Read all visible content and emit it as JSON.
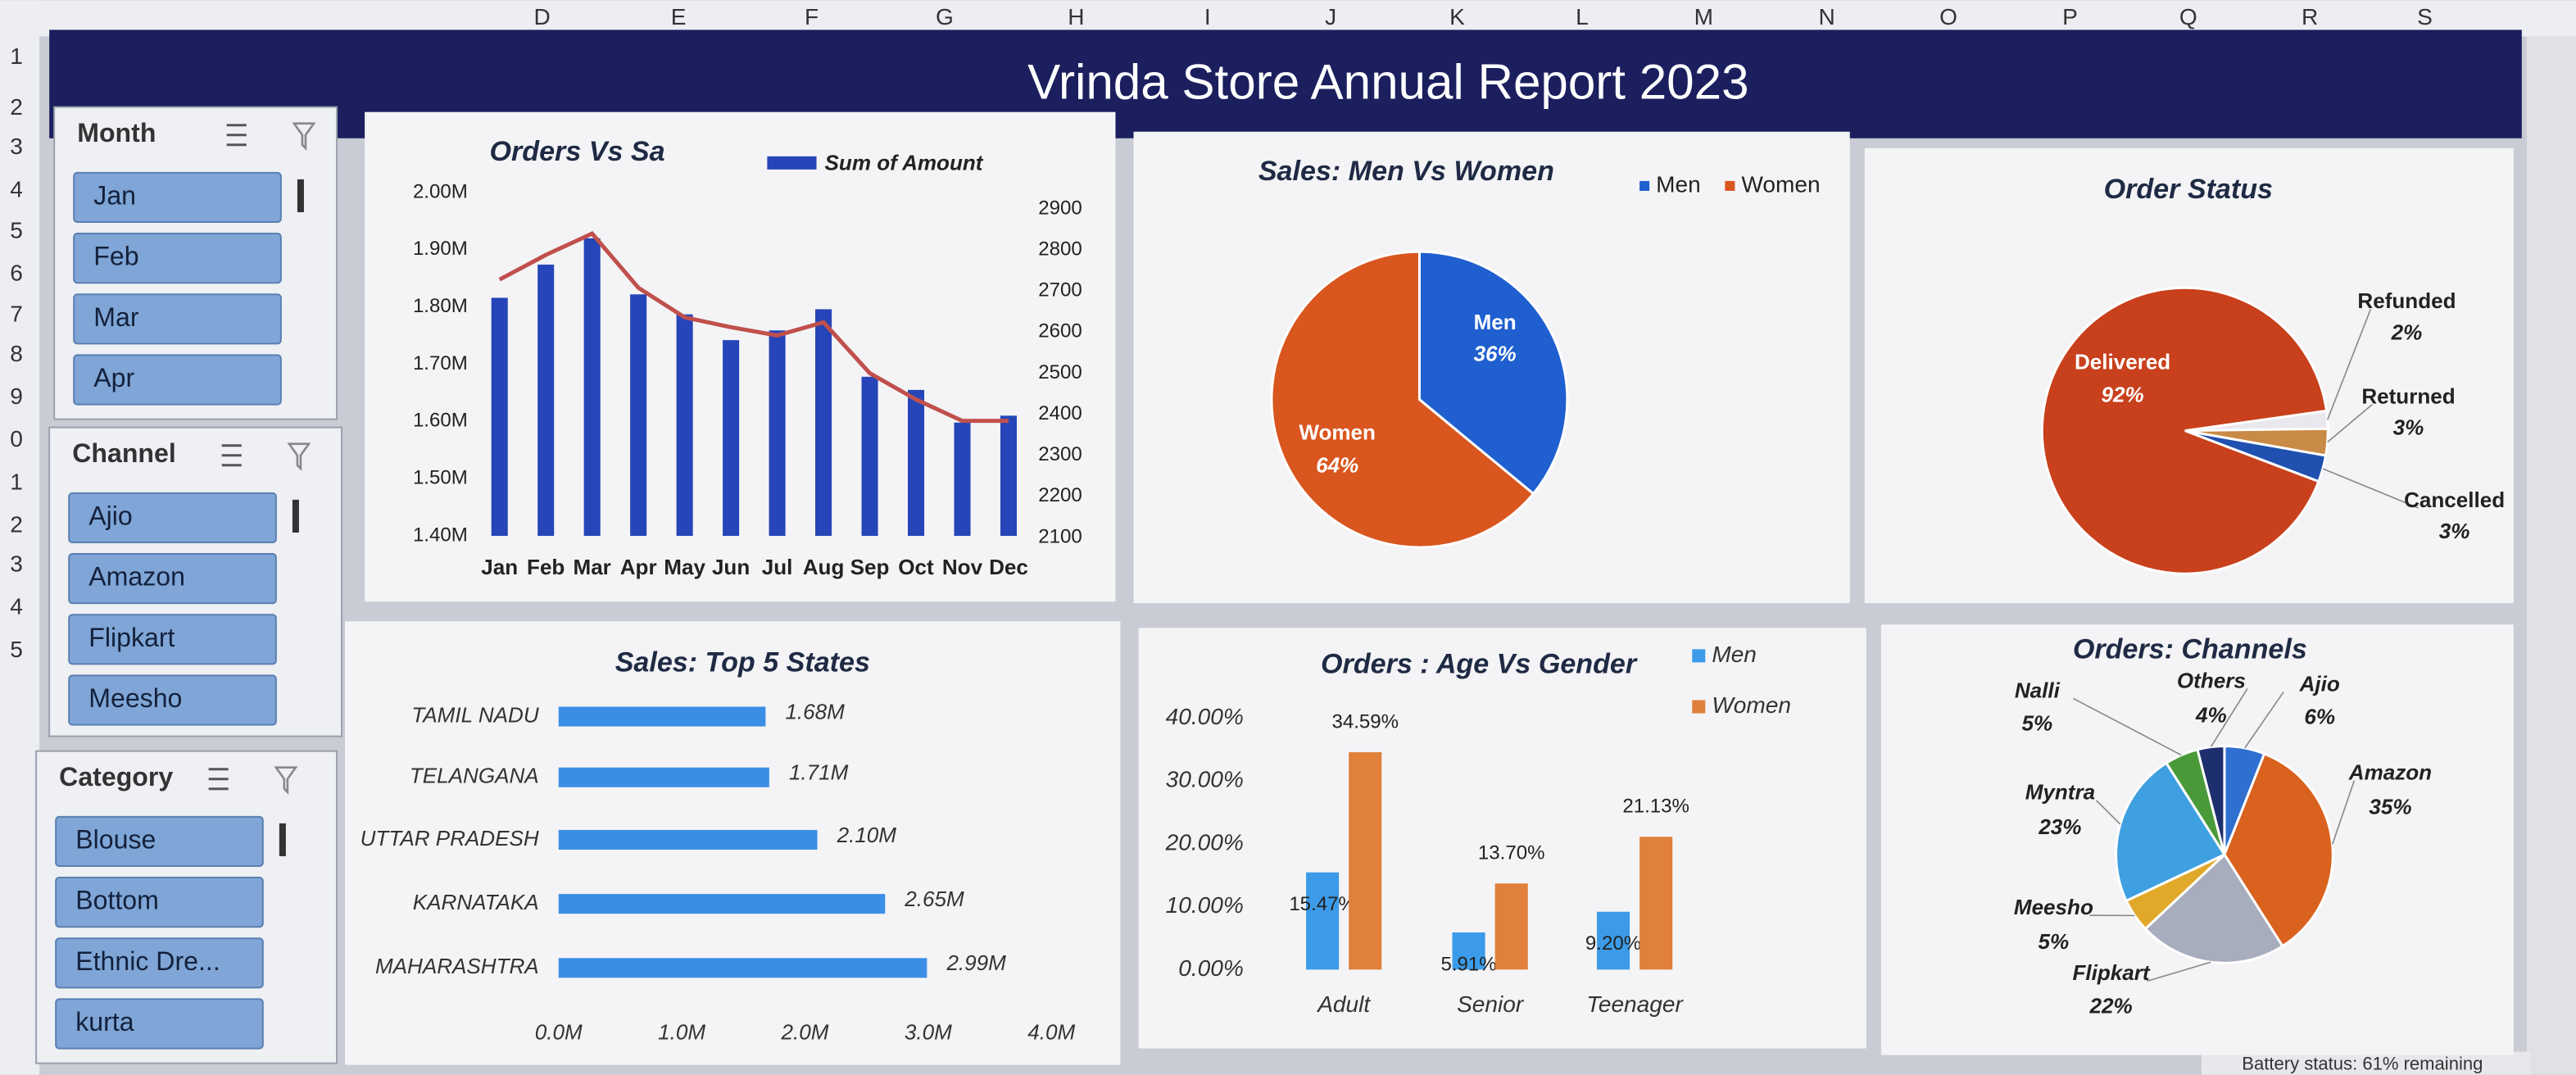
{
  "title": "Vrinda Store Annual Report 2023",
  "column_headers": [
    "D",
    "E",
    "F",
    "G",
    "H",
    "I",
    "J",
    "K",
    "L",
    "M",
    "N",
    "O",
    "P",
    "Q",
    "R",
    "S"
  ],
  "row_headers": [
    "1",
    "2",
    "3",
    "4",
    "5",
    "6",
    "7",
    "8",
    "9",
    "0",
    "1",
    "2",
    "3",
    "4",
    "5"
  ],
  "slicers": [
    {
      "title": "Month",
      "items": [
        "Jan",
        "Feb",
        "Mar",
        "Apr"
      ]
    },
    {
      "title": "Channel",
      "items": [
        "Ajio",
        "Amazon",
        "Flipkart",
        "Meesho"
      ]
    },
    {
      "title": "Category",
      "items": [
        "Blouse",
        "Bottom",
        "Ethnic Dre...",
        "kurta"
      ]
    }
  ],
  "status_bar": "Battery status: 61% remaining",
  "chart_data": [
    {
      "type": "combo",
      "title": "Orders Vs Sa",
      "categories": [
        "Jan",
        "Feb",
        "Mar",
        "Apr",
        "May",
        "Jun",
        "Jul",
        "Aug",
        "Sep",
        "Oct",
        "Nov",
        "Dec"
      ],
      "series": [
        {
          "name": "Sum of Amount",
          "type": "bar",
          "color": "#2545b8",
          "values": [
            1816000,
            1874000,
            1920000,
            1822000,
            1787000,
            1742000,
            1759000,
            1796000,
            1678000,
            1655000,
            1598000,
            1610000
          ]
        },
        {
          "type": "line",
          "axis": "y2",
          "color": "#c0504d",
          "values": [
            2728,
            2788,
            2840,
            2708,
            2636,
            2612,
            2592,
            2624,
            2500,
            2436,
            2384,
            2384
          ]
        }
      ],
      "ylim": [
        1400000,
        2000000
      ],
      "yticks": [
        {
          "value": 1400000,
          "label": "1.40M"
        },
        {
          "value": 1500000,
          "label": "1.50M"
        },
        {
          "value": 1600000,
          "label": "1.60M"
        },
        {
          "value": 1700000,
          "label": "1.70M"
        },
        {
          "value": 1800000,
          "label": "1.80M"
        },
        {
          "value": 1900000,
          "label": "1.90M"
        },
        {
          "value": 2000000,
          "label": "2.00M"
        }
      ],
      "y2lim": [
        2100,
        2900
      ],
      "y2ticks": [
        2100,
        2200,
        2300,
        2400,
        2500,
        2600,
        2700,
        2800,
        2900
      ]
    },
    {
      "type": "pie",
      "title": "Sales: Men Vs Women",
      "categories": [
        "Men",
        "Women"
      ],
      "values": [
        36,
        64
      ],
      "value_labels": [
        "36%",
        "64%"
      ],
      "colors": [
        "#1f5fcf",
        "#d9561f"
      ]
    },
    {
      "type": "pie",
      "title": "Order Status",
      "categories": [
        "Refunded",
        "Returned",
        "Cancelled",
        "Delivered"
      ],
      "values": [
        2,
        3,
        3,
        92
      ],
      "value_labels": [
        "2%",
        "3%",
        "3%",
        "92%"
      ],
      "colors": [
        "#e8e8ee",
        "#c98a45",
        "#2050b0",
        "#c8401c"
      ]
    },
    {
      "type": "hbar",
      "title": "Sales: Top 5 States",
      "categories": [
        "TAMIL NADU",
        "TELANGANA",
        "UTTAR PRADESH",
        "KARNATAKA",
        "MAHARASHTRA"
      ],
      "values": [
        1680000,
        1710000,
        2100000,
        2650000,
        2990000
      ],
      "value_labels": [
        "1.68M",
        "1.71M",
        "2.10M",
        "2.65M",
        "2.99M"
      ],
      "color": "#3b8ee6",
      "xlim": [
        0,
        4000000
      ],
      "xticks": [
        {
          "value": 0,
          "label": "0.0M"
        },
        {
          "value": 1000000,
          "label": "1.0M"
        },
        {
          "value": 2000000,
          "label": "2.0M"
        },
        {
          "value": 3000000,
          "label": "3.0M"
        },
        {
          "value": 4000000,
          "label": "4.0M"
        }
      ]
    },
    {
      "type": "grouped",
      "title": "Orders : Age Vs Gender",
      "categories": [
        "Adult",
        "Senior",
        "Teenager"
      ],
      "series": [
        {
          "name": "Men",
          "color": "#3c9be8",
          "values": [
            15.47,
            5.91,
            9.2
          ],
          "value_labels": [
            "15.47%",
            "5.91%",
            "9.20%"
          ]
        },
        {
          "name": "Women",
          "color": "#e0803a",
          "values": [
            34.59,
            13.7,
            21.13
          ],
          "value_labels": [
            "34.59%",
            "13.70%",
            "21.13%"
          ]
        }
      ],
      "ylim": [
        0,
        40
      ],
      "yticks": [
        {
          "value": 0,
          "label": "0.00%"
        },
        {
          "value": 10,
          "label": "10.00%"
        },
        {
          "value": 20,
          "label": "20.00%"
        },
        {
          "value": 30,
          "label": "30.00%"
        },
        {
          "value": 40,
          "label": "40.00%"
        }
      ]
    },
    {
      "type": "pie",
      "title": "Orders: Channels",
      "categories": [
        "Ajio",
        "Amazon",
        "Flipkart",
        "Meesho",
        "Myntra",
        "Nalli",
        "Others"
      ],
      "values": [
        6,
        35,
        22,
        5,
        23,
        5,
        4
      ],
      "value_labels": [
        "6%",
        "35%",
        "22%",
        "5%",
        "23%",
        "5%",
        "4%"
      ],
      "colors": [
        "#2f6fd0",
        "#d9621f",
        "#a7adbd",
        "#e0a92a",
        "#3ea0e0",
        "#4a9a3a",
        "#1d2f6e"
      ]
    }
  ]
}
